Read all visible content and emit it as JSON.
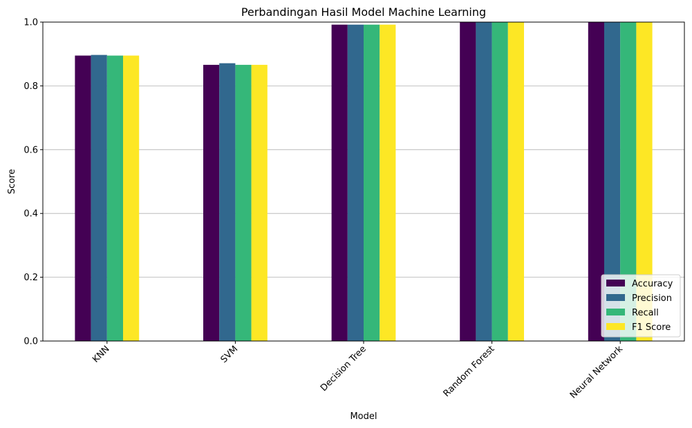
{
  "chart_data": {
    "type": "bar",
    "title": "Perbandingan Hasil Model Machine Learning",
    "xlabel": "Model",
    "ylabel": "Score",
    "categories": [
      "KNN",
      "SVM",
      "Decision Tree",
      "Random Forest",
      "Neural Network"
    ],
    "series": [
      {
        "name": "Accuracy",
        "color": "#440154",
        "values": [
          0.895,
          0.866,
          0.992,
          1.0,
          1.0
        ]
      },
      {
        "name": "Precision",
        "color": "#31688e",
        "values": [
          0.897,
          0.871,
          0.992,
          1.0,
          1.0
        ]
      },
      {
        "name": "Recall",
        "color": "#35b779",
        "values": [
          0.895,
          0.866,
          0.992,
          1.0,
          1.0
        ]
      },
      {
        "name": "F1 Score",
        "color": "#fde725",
        "values": [
          0.895,
          0.866,
          0.992,
          1.0,
          1.0
        ]
      }
    ],
    "ylim": [
      0,
      1.0
    ],
    "yticks": [
      "0.0",
      "0.2",
      "0.4",
      "0.6",
      "0.8",
      "1.0"
    ],
    "grid": "y",
    "legend_position": "lower-right",
    "xtick_rotation": "45deg"
  }
}
